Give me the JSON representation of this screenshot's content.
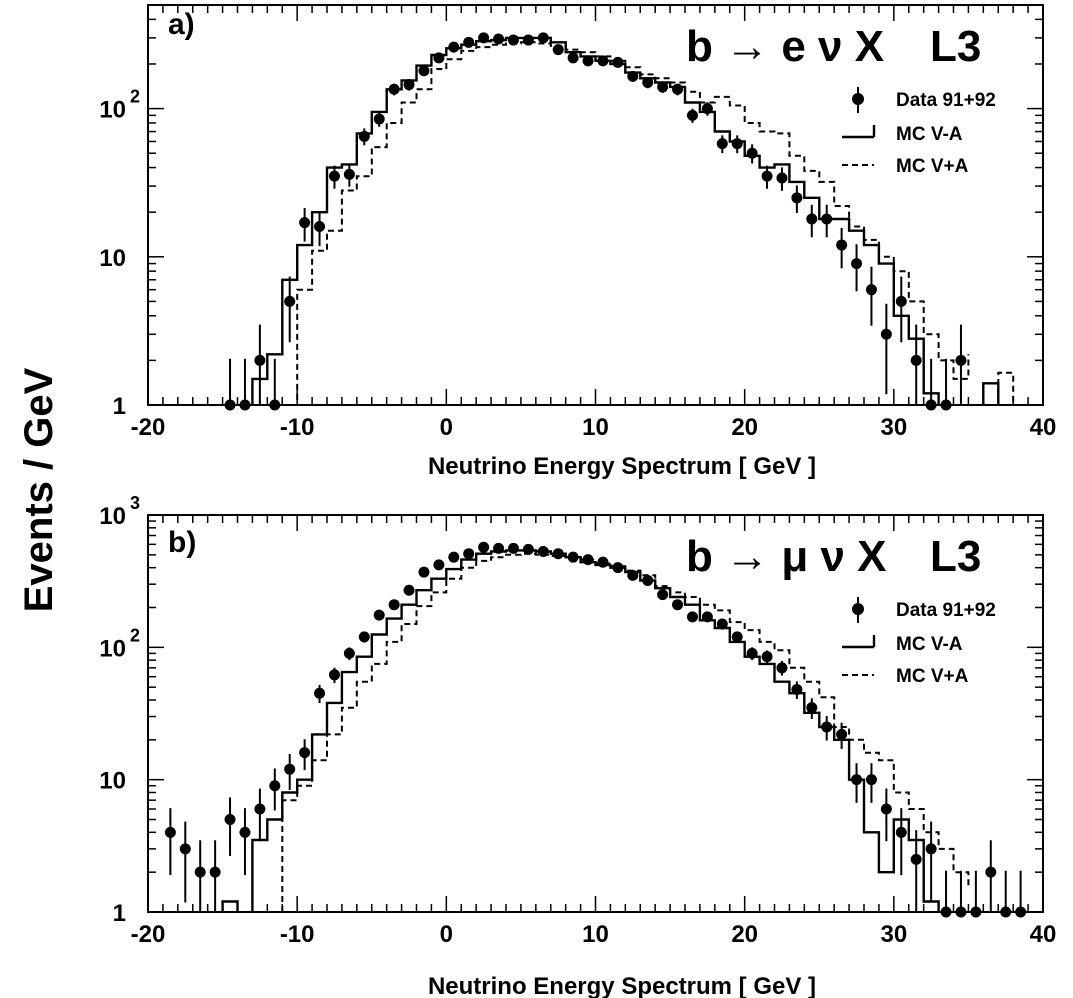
{
  "y_axis_title": "Events / GeV",
  "chart_data": [
    {
      "type": "histogram",
      "panel_label": "a)",
      "process": "b → e ν X",
      "experiment": "L3",
      "xlabel": "Neutrino Energy Spectrum [ GeV ]",
      "xlim": [
        -20,
        40
      ],
      "ylim": [
        1,
        500
      ],
      "yscale": "log",
      "bin_width": 1,
      "x_ticks": [
        -20,
        -10,
        0,
        10,
        20,
        30,
        40
      ],
      "y_ticks": [
        {
          "value": 1,
          "base": "1",
          "exp": ""
        },
        {
          "value": 10,
          "base": "10",
          "exp": ""
        },
        {
          "value": 100,
          "base": "10",
          "exp": "2"
        }
      ],
      "legend": {
        "placement": "top-right",
        "entries": [
          "Data 91+92",
          "MC V-A",
          "MC V+A"
        ]
      },
      "data_points": {
        "x": [
          -14.5,
          -13.5,
          -12.5,
          -11.5,
          -10.5,
          -9.5,
          -8.5,
          -7.5,
          -6.5,
          -5.5,
          -4.5,
          -3.5,
          -2.5,
          -1.5,
          -0.5,
          0.5,
          1.5,
          2.5,
          3.5,
          4.5,
          5.5,
          6.5,
          7.5,
          8.5,
          9.5,
          10.5,
          11.5,
          12.5,
          13.5,
          14.5,
          15.5,
          16.5,
          17.5,
          18.5,
          19.5,
          20.5,
          21.5,
          22.5,
          23.5,
          24.5,
          25.5,
          26.5,
          27.5,
          28.5,
          29.5,
          30.5,
          31.5,
          32.5,
          33.5,
          34.5
        ],
        "y": [
          1,
          1,
          2,
          1,
          5,
          17,
          16,
          35,
          36,
          65,
          85,
          135,
          145,
          180,
          220,
          260,
          280,
          300,
          295,
          290,
          290,
          300,
          250,
          220,
          210,
          210,
          205,
          165,
          150,
          140,
          135,
          90,
          100,
          58,
          58,
          50,
          35,
          34,
          25,
          18,
          18,
          12,
          9,
          6,
          3,
          5,
          2,
          1,
          1,
          2
        ]
      },
      "series": [
        {
          "name": "MC V-A",
          "style": "solid",
          "x_edges": [
            -13,
            -12,
            -11,
            -10,
            -9,
            -8,
            -7,
            -6,
            -5,
            -4,
            -3,
            -2,
            -1,
            0,
            1,
            2,
            3,
            4,
            5,
            6,
            7,
            8,
            9,
            10,
            11,
            12,
            13,
            14,
            15,
            16,
            17,
            18,
            19,
            20,
            21,
            22,
            23,
            24,
            25,
            26,
            27,
            28,
            29,
            30,
            31,
            32,
            33
          ],
          "values": [
            1.5,
            2.2,
            7,
            12,
            20,
            40,
            42,
            68,
            95,
            135,
            155,
            195,
            230,
            255,
            270,
            285,
            290,
            300,
            300,
            300,
            280,
            240,
            225,
            210,
            200,
            175,
            160,
            150,
            140,
            110,
            95,
            70,
            60,
            48,
            40,
            42,
            32,
            25,
            18,
            18,
            15,
            12,
            9,
            4,
            2.8,
            1.2
          ]
        },
        {
          "name": "MC V+A",
          "style": "dashed",
          "x_edges": [
            -11,
            -10,
            -9,
            -8,
            -7,
            -6,
            -5,
            -4,
            -3,
            -2,
            -1,
            0,
            1,
            2,
            3,
            4,
            5,
            6,
            7,
            8,
            9,
            10,
            11,
            12,
            13,
            14,
            15,
            16,
            17,
            18,
            19,
            20,
            21,
            22,
            23,
            24,
            25,
            26,
            27,
            28,
            29,
            30,
            31,
            32,
            33,
            34,
            35
          ],
          "values": [
            1,
            6,
            11,
            15,
            28,
            35,
            55,
            80,
            110,
            135,
            185,
            215,
            245,
            260,
            270,
            275,
            280,
            275,
            265,
            250,
            240,
            225,
            210,
            190,
            170,
            160,
            150,
            130,
            110,
            120,
            105,
            80,
            70,
            68,
            48,
            38,
            32,
            22,
            16,
            13,
            10,
            8,
            5,
            3,
            2,
            1.5,
            2.2
          ]
        },
        {
          "name": "MC V-A isolated",
          "style": "solid",
          "x_edges": [
            36,
            37
          ],
          "values": [
            1.4
          ]
        },
        {
          "name": "MC V+A isolated",
          "style": "dashed",
          "x_edges": [
            37,
            38
          ],
          "values": [
            1.65
          ]
        }
      ]
    },
    {
      "type": "histogram",
      "panel_label": "b)",
      "process": "b → μ ν X",
      "experiment": "L3",
      "xlabel": "Neutrino Energy Spectrum [ GeV ]",
      "xlim": [
        -20,
        40
      ],
      "ylim": [
        1,
        1000
      ],
      "yscale": "log",
      "bin_width": 1,
      "x_ticks": [
        -20,
        -10,
        0,
        10,
        20,
        30,
        40
      ],
      "y_ticks": [
        {
          "value": 1,
          "base": "1",
          "exp": ""
        },
        {
          "value": 10,
          "base": "10",
          "exp": ""
        },
        {
          "value": 100,
          "base": "10",
          "exp": "2"
        },
        {
          "value": 1000,
          "base": "10",
          "exp": "3"
        }
      ],
      "legend": {
        "placement": "top-right",
        "entries": [
          "Data 91+92",
          "MC V-A",
          "MC V+A"
        ]
      },
      "data_points": {
        "x": [
          -18.5,
          -17.5,
          -16.5,
          -15.5,
          -14.5,
          -13.5,
          -12.5,
          -11.5,
          -10.5,
          -9.5,
          -8.5,
          -7.5,
          -6.5,
          -5.5,
          -4.5,
          -3.5,
          -2.5,
          -1.5,
          -0.5,
          0.5,
          1.5,
          2.5,
          3.5,
          4.5,
          5.5,
          6.5,
          7.5,
          8.5,
          9.5,
          10.5,
          11.5,
          12.5,
          13.5,
          14.5,
          15.5,
          16.5,
          17.5,
          18.5,
          19.5,
          20.5,
          21.5,
          22.5,
          23.5,
          24.5,
          25.5,
          26.5,
          27.5,
          28.5,
          29.5,
          30.5,
          31.5,
          32.5,
          33.5,
          34.5,
          35.5,
          36.5,
          37.5,
          38.5
        ],
        "y": [
          4,
          3,
          2,
          2,
          5,
          4,
          6,
          9,
          12,
          16,
          45,
          62,
          90,
          120,
          175,
          210,
          270,
          370,
          420,
          480,
          510,
          570,
          560,
          560,
          550,
          530,
          510,
          480,
          460,
          440,
          400,
          350,
          320,
          250,
          210,
          170,
          170,
          150,
          120,
          90,
          85,
          70,
          48,
          35,
          25,
          22,
          10,
          10,
          6,
          4,
          2.5,
          3,
          1,
          1,
          1,
          2,
          1,
          1
        ]
      },
      "series": [
        {
          "name": "MC V-A",
          "style": "solid",
          "x_edges": [
            -13,
            -12,
            -11,
            -10,
            -9,
            -8,
            -7,
            -6,
            -5,
            -4,
            -3,
            -2,
            -1,
            0,
            1,
            2,
            3,
            4,
            5,
            6,
            7,
            8,
            9,
            10,
            11,
            12,
            13,
            14,
            15,
            16,
            17,
            18,
            19,
            20,
            21,
            22,
            23,
            24,
            25,
            26,
            27,
            28,
            29,
            30,
            31,
            32,
            33
          ],
          "values": [
            3.5,
            5,
            8,
            10,
            22,
            38,
            65,
            85,
            125,
            165,
            210,
            270,
            330,
            390,
            460,
            510,
            530,
            540,
            540,
            530,
            510,
            480,
            440,
            420,
            400,
            370,
            320,
            280,
            240,
            210,
            160,
            140,
            110,
            85,
            75,
            55,
            45,
            32,
            25,
            20,
            10,
            4,
            2,
            5,
            3.5,
            1.2
          ]
        },
        {
          "name": "MC V-A low bin",
          "style": "solid",
          "x_edges": [
            -15,
            -14
          ],
          "values": [
            1.2
          ]
        },
        {
          "name": "MC V+A",
          "style": "dashed",
          "x_edges": [
            -11,
            -10,
            -9,
            -8,
            -7,
            -6,
            -5,
            -4,
            -3,
            -2,
            -1,
            0,
            1,
            2,
            3,
            4,
            5,
            6,
            7,
            8,
            9,
            10,
            11,
            12,
            13,
            14,
            15,
            16,
            17,
            18,
            19,
            20,
            21,
            22,
            23,
            24,
            25,
            26,
            27,
            28,
            29,
            30,
            31,
            32,
            33,
            34,
            35
          ],
          "values": [
            7,
            9,
            14,
            22,
            35,
            55,
            75,
            110,
            150,
            205,
            260,
            330,
            400,
            450,
            480,
            500,
            510,
            500,
            490,
            480,
            460,
            430,
            410,
            380,
            350,
            290,
            260,
            240,
            210,
            190,
            155,
            135,
            110,
            95,
            70,
            55,
            42,
            25,
            20,
            16,
            14,
            8,
            6,
            4,
            3,
            2,
            1.5
          ]
        }
      ]
    }
  ]
}
